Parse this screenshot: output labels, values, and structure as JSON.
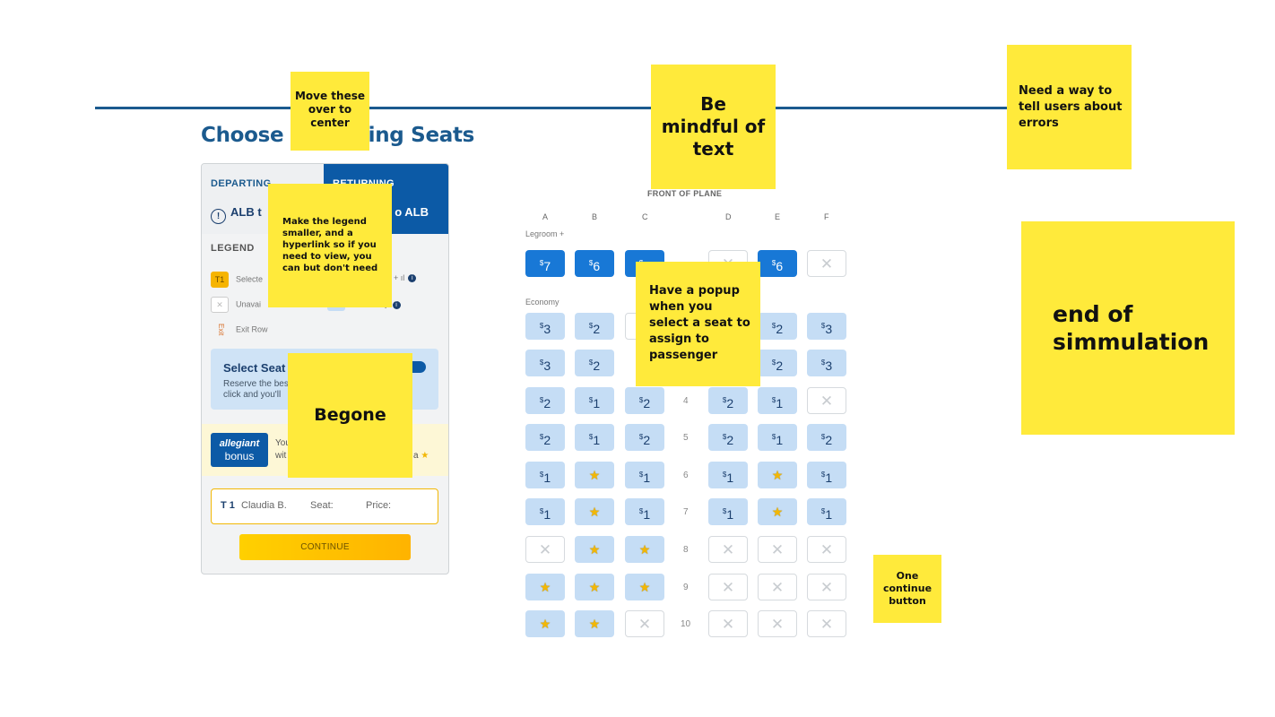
{
  "page": {
    "title": "Choose Returning Seats"
  },
  "tabs": {
    "departing": {
      "label": "DEPARTING",
      "route": "ALB t"
    },
    "returning": {
      "label": "RETURNING",
      "route": "o ALB"
    }
  },
  "legend": {
    "title": "LEGEND",
    "items": [
      {
        "icon_text": "T1",
        "label": "Selecte"
      },
      {
        "icon_text": "✕",
        "label": "Unavai"
      },
      {
        "icon_text": "Exit",
        "label": "Exit Row"
      },
      {
        "label": "+ ıl"
      },
      {
        "label": "y"
      }
    ]
  },
  "select_seats": {
    "title": "Select Seat",
    "desc_line1": "Reserve the bes",
    "desc_line2": "click and you'll"
  },
  "bonus": {
    "logo_top": "allegiant",
    "logo_bottom": "bonus",
    "text1": "You",
    "text2": "mes",
    "text3": "wit",
    "text4": "a"
  },
  "passenger": {
    "id": "T 1",
    "name": "Claudia B.",
    "seat_label": "Seat:",
    "price_label": "Price:"
  },
  "continue_label": "CONTINUE",
  "seatmap": {
    "front_label": "FRONT OF PLANE",
    "columns": [
      "A",
      "B",
      "C",
      "D",
      "E",
      "F"
    ],
    "sections": {
      "legroom": "Legroom +",
      "economy": "Economy"
    },
    "rows": [
      {
        "num": "",
        "seats": [
          [
            "plus",
            "7"
          ],
          [
            "plus",
            "6"
          ],
          [
            "plus",
            "7"
          ],
          [
            "unavail",
            ""
          ],
          [
            "plus",
            "6"
          ],
          [
            "unavail",
            ""
          ]
        ]
      },
      {
        "num": "",
        "seats": [
          [
            "avail",
            "3"
          ],
          [
            "avail",
            "2"
          ],
          [
            "unavail",
            ""
          ],
          [
            "hidden",
            ""
          ],
          [
            "avail",
            "2"
          ],
          [
            "avail",
            "3"
          ]
        ]
      },
      {
        "num": "",
        "seats": [
          [
            "avail",
            "3"
          ],
          [
            "avail",
            "2"
          ],
          [
            "hidden",
            ""
          ],
          [
            "hidden",
            ""
          ],
          [
            "avail",
            "2"
          ],
          [
            "avail",
            "3"
          ]
        ]
      },
      {
        "num": "4",
        "seats": [
          [
            "avail",
            "2"
          ],
          [
            "avail",
            "1"
          ],
          [
            "avail",
            "2"
          ],
          [
            "avail",
            "2"
          ],
          [
            "avail",
            "1"
          ],
          [
            "unavail",
            ""
          ]
        ]
      },
      {
        "num": "5",
        "seats": [
          [
            "avail",
            "2"
          ],
          [
            "avail",
            "1"
          ],
          [
            "avail",
            "2"
          ],
          [
            "avail",
            "2"
          ],
          [
            "avail",
            "1"
          ],
          [
            "avail",
            "2"
          ]
        ]
      },
      {
        "num": "6",
        "seats": [
          [
            "avail",
            "1"
          ],
          [
            "star",
            ""
          ],
          [
            "avail",
            "1"
          ],
          [
            "avail",
            "1"
          ],
          [
            "star",
            ""
          ],
          [
            "avail",
            "1"
          ]
        ]
      },
      {
        "num": "7",
        "seats": [
          [
            "avail",
            "1"
          ],
          [
            "star",
            ""
          ],
          [
            "avail",
            "1"
          ],
          [
            "avail",
            "1"
          ],
          [
            "star",
            ""
          ],
          [
            "avail",
            "1"
          ]
        ]
      },
      {
        "num": "8",
        "seats": [
          [
            "unavail",
            ""
          ],
          [
            "star",
            ""
          ],
          [
            "star",
            ""
          ],
          [
            "unavail",
            ""
          ],
          [
            "unavail",
            ""
          ],
          [
            "unavail",
            ""
          ]
        ]
      },
      {
        "num": "9",
        "seats": [
          [
            "star",
            ""
          ],
          [
            "star",
            ""
          ],
          [
            "star",
            ""
          ],
          [
            "unavail",
            ""
          ],
          [
            "unavail",
            ""
          ],
          [
            "unavail",
            ""
          ]
        ]
      },
      {
        "num": "10",
        "seats": [
          [
            "star",
            ""
          ],
          [
            "star",
            ""
          ],
          [
            "unavail",
            ""
          ],
          [
            "unavail",
            ""
          ],
          [
            "unavail",
            ""
          ],
          [
            "unavail",
            ""
          ]
        ]
      }
    ]
  },
  "notes": {
    "move_center": "Move these over to center",
    "mindful": "Be mindful of text",
    "errors": "Need a way to tell users about errors",
    "legend_smaller": "Make the legend smaller, and a hyperlink so if you need to view, you can but don't need",
    "popup": "Have a popup when you select a seat to assign to passenger",
    "begone": "Begone",
    "end": "end of simmulation",
    "one_continue": "One continue button"
  }
}
